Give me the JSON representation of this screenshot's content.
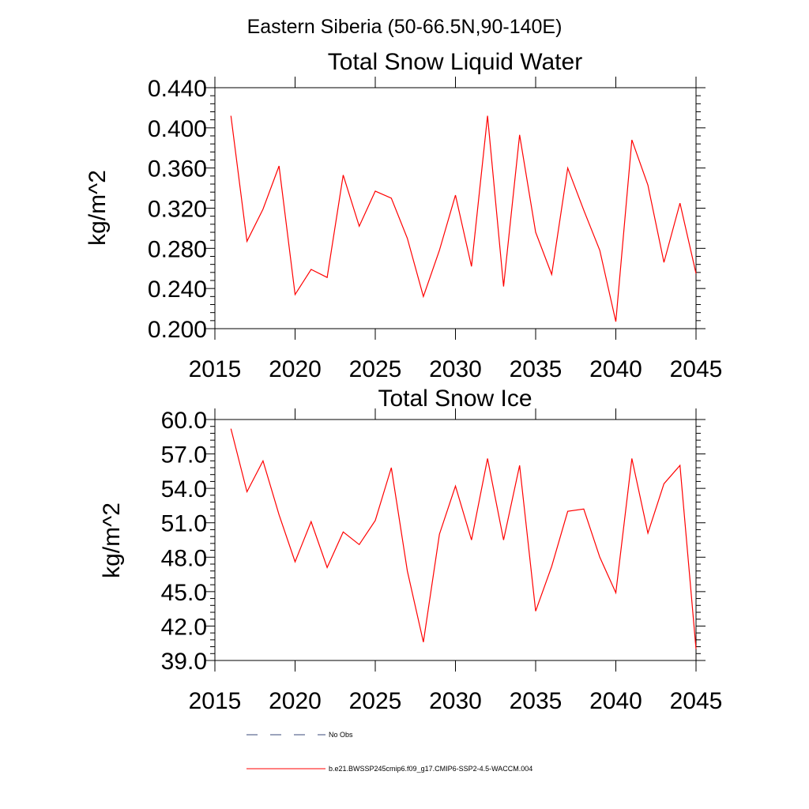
{
  "header": {
    "region_title": "Eastern Siberia (50-66.5N,90-140E)"
  },
  "chart_data": [
    {
      "type": "line",
      "title": "Total Snow Liquid Water",
      "xlabel": "",
      "ylabel": "kg/m^2",
      "xlim": [
        2015,
        2045
      ],
      "ylim": [
        0.2,
        0.44
      ],
      "x_ticks": [
        2015,
        2020,
        2025,
        2030,
        2035,
        2040,
        2045
      ],
      "x_tick_labels": [
        "2015",
        "2020",
        "2025",
        "2030",
        "2035",
        "2040",
        "2045"
      ],
      "y_ticks": [
        0.2,
        0.24,
        0.28,
        0.32,
        0.36,
        0.4,
        0.44
      ],
      "y_tick_labels": [
        "0.200",
        "0.240",
        "0.280",
        "0.320",
        "0.360",
        "0.400",
        "0.440"
      ],
      "series": [
        {
          "name": "b.e21.BWSSP245cmip6.f09_g17.CMIP6-SSP2-4.5-WACCM.004",
          "color": "#ff0000",
          "x": [
            2016,
            2017,
            2018,
            2019,
            2020,
            2021,
            2022,
            2023,
            2024,
            2025,
            2026,
            2027,
            2028,
            2029,
            2030,
            2031,
            2032,
            2033,
            2034,
            2035,
            2036,
            2037,
            2038,
            2039,
            2040,
            2041,
            2042,
            2043,
            2044,
            2045
          ],
          "values": [
            0.412,
            0.287,
            0.319,
            0.362,
            0.234,
            0.259,
            0.251,
            0.353,
            0.302,
            0.337,
            0.33,
            0.29,
            0.232,
            0.278,
            0.333,
            0.262,
            0.412,
            0.242,
            0.393,
            0.296,
            0.254,
            0.36,
            0.318,
            0.278,
            0.207,
            0.388,
            0.343,
            0.266,
            0.325,
            0.255
          ]
        }
      ]
    },
    {
      "type": "line",
      "title": "Total Snow Ice",
      "xlabel": "",
      "ylabel": "kg/m^2",
      "xlim": [
        2015,
        2045
      ],
      "ylim": [
        39,
        60
      ],
      "x_ticks": [
        2015,
        2020,
        2025,
        2030,
        2035,
        2040,
        2045
      ],
      "x_tick_labels": [
        "2015",
        "2020",
        "2025",
        "2030",
        "2035",
        "2040",
        "2045"
      ],
      "y_ticks": [
        39,
        42,
        45,
        48,
        51,
        54,
        57,
        60
      ],
      "y_tick_labels": [
        "39.0",
        "42.0",
        "45.0",
        "48.0",
        "51.0",
        "54.0",
        "57.0",
        "60.0"
      ],
      "series": [
        {
          "name": "b.e21.BWSSP245cmip6.f09_g17.CMIP6-SSP2-4.5-WACCM.004",
          "color": "#ff0000",
          "x": [
            2016,
            2017,
            2018,
            2019,
            2020,
            2021,
            2022,
            2023,
            2024,
            2025,
            2026,
            2027,
            2028,
            2029,
            2030,
            2031,
            2032,
            2033,
            2034,
            2035,
            2036,
            2037,
            2038,
            2039,
            2040,
            2041,
            2042,
            2043,
            2044,
            2045
          ],
          "values": [
            59.2,
            53.7,
            56.4,
            51.7,
            47.6,
            51.1,
            47.1,
            50.2,
            49.1,
            51.2,
            55.8,
            46.8,
            40.6,
            50.0,
            54.2,
            49.5,
            56.6,
            49.5,
            56.0,
            43.3,
            47.2,
            52.0,
            52.2,
            48.0,
            44.9,
            56.6,
            50.1,
            54.4,
            56.0,
            40.0
          ]
        }
      ]
    }
  ],
  "legend": {
    "items": [
      {
        "label": "No Obs",
        "color": "#3a4a7a",
        "style": "dashed"
      },
      {
        "label": "b.e21.BWSSP245cmip6.f09_g17.CMIP6-SSP2-4.5-WACCM.004",
        "color": "#ff0000",
        "style": "solid"
      }
    ]
  }
}
